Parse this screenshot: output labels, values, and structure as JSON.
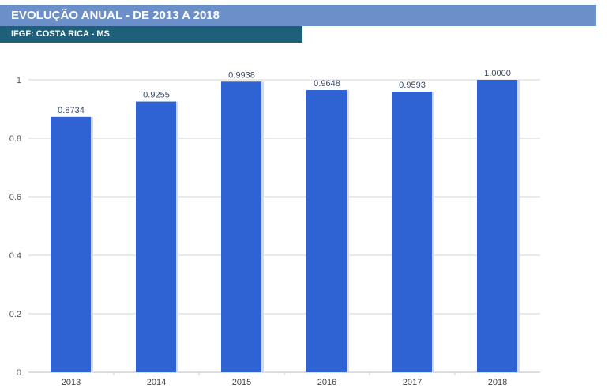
{
  "header": {
    "title": "EVOLUÇÃO ANUAL - DE 2013 A 2018",
    "subtitle": "IFGF: COSTA RICA - MS"
  },
  "chart_data": {
    "type": "bar",
    "title": "EVOLUÇÃO ANUAL - DE 2013 A 2018",
    "subtitle": "IFGF: COSTA RICA - MS",
    "categories": [
      "2013",
      "2014",
      "2015",
      "2016",
      "2017",
      "2018"
    ],
    "values": [
      0.8734,
      0.9255,
      0.9938,
      0.9648,
      0.9593,
      1.0
    ],
    "labels": [
      "0.8734",
      "0.9255",
      "0.9938",
      "0.9648",
      "0.9593",
      "1.0000"
    ],
    "yticks": [
      "0",
      "0.2",
      "0.4",
      "0.6",
      "0.8",
      "1"
    ],
    "ylim": [
      0,
      1
    ],
    "xlabel": "",
    "ylabel": "",
    "grid": true,
    "bar_color": "#2f62d2"
  }
}
